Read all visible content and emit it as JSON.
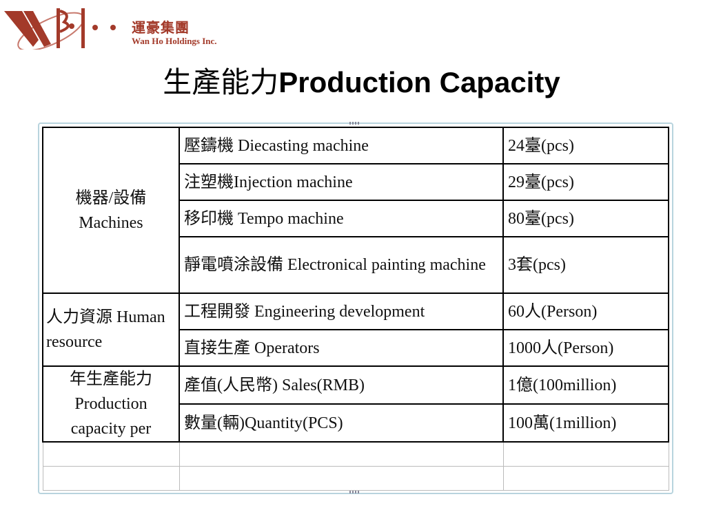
{
  "logo": {
    "cn": "運豪集團",
    "en": "Wan Ho Holdings Inc.",
    "color": "#a33a2a"
  },
  "title": {
    "cn": "生產能力",
    "en": "Production Capacity"
  },
  "table": {
    "groups": [
      {
        "label": "機器/設備 Machines",
        "rows": [
          [
            "壓鑄機 Diecasting machine",
            "24臺(pcs)"
          ],
          [
            "注塑機Injection machine",
            "29臺(pcs)"
          ],
          [
            "移印機 Tempo machine",
            "80臺(pcs)"
          ],
          [
            "靜電噴涂設備 Electronical painting machine",
            "3套(pcs)"
          ]
        ]
      },
      {
        "label": "人力資源 Human resource",
        "rows": [
          [
            "工程開發 Engineering development",
            "60人(Person)"
          ],
          [
            "直接生產 Operators",
            "1000人(Person)"
          ]
        ]
      },
      {
        "label": "年生產能力 Production capacity per",
        "rows": [
          [
            "產值(人民幣) Sales(RMB)",
            "1億(100million)"
          ],
          [
            "數量(輛)Quantity(PCS)",
            "100萬(1million)"
          ]
        ]
      }
    ]
  }
}
